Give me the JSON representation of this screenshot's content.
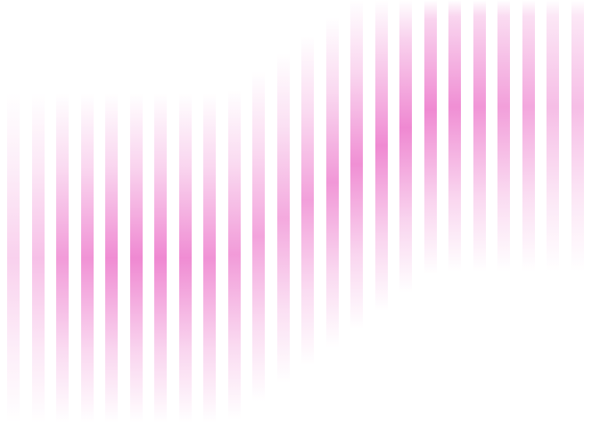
{
  "artwork": {
    "background_color": "#ffffff",
    "stripe_color": "#ee82cf",
    "stripe_count": 24,
    "motif": "vertical-gradient-stripes-wave"
  }
}
